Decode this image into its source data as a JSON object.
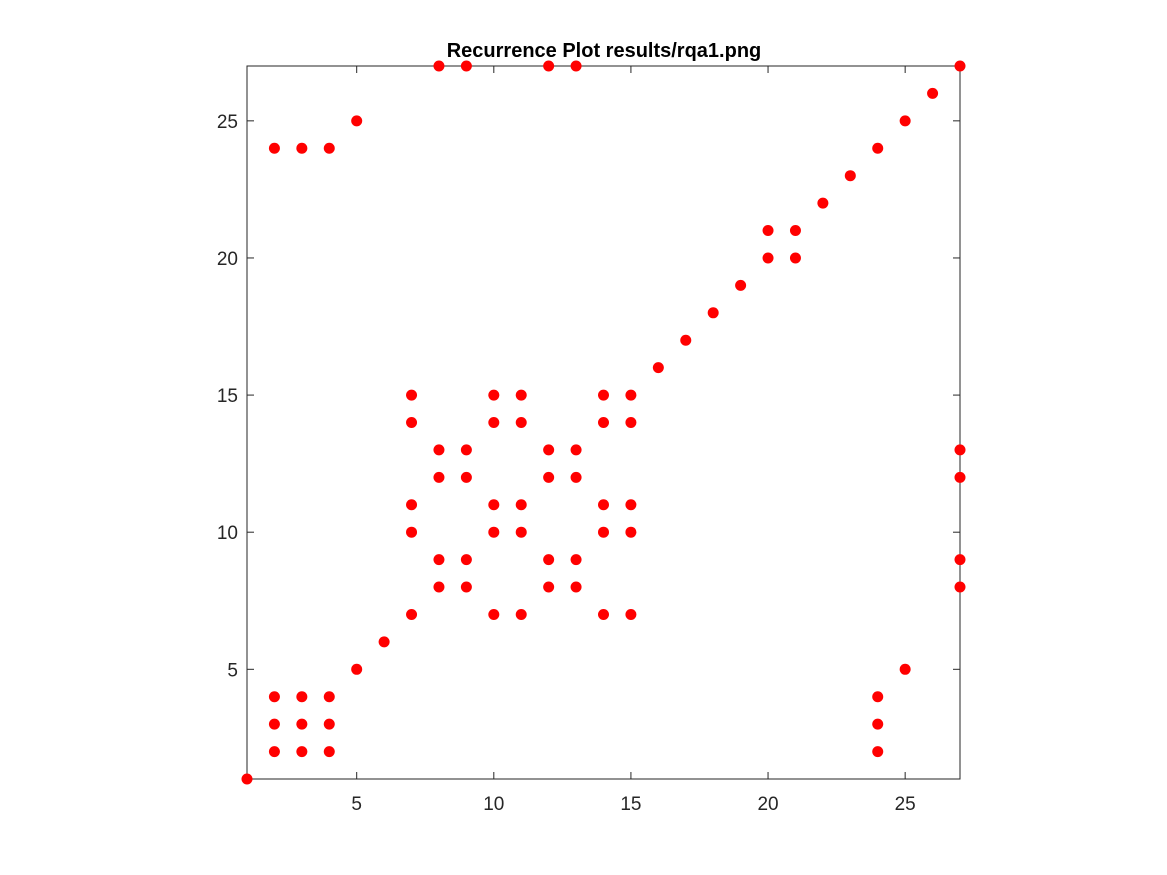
{
  "chart_data": {
    "type": "scatter",
    "title": "Recurrence Plot results/rqa1.png",
    "xlabel": "",
    "ylabel": "",
    "xlim": [
      1,
      27
    ],
    "ylim": [
      1,
      27
    ],
    "x_ticks": [
      5,
      10,
      15,
      20,
      25
    ],
    "y_ticks": [
      5,
      10,
      15,
      20,
      25
    ],
    "grid": false,
    "marker_color": "#ff0000",
    "axis_color": "#262626",
    "series": [
      {
        "points": [
          [
            1,
            1
          ],
          [
            2,
            2
          ],
          [
            2,
            3
          ],
          [
            2,
            4
          ],
          [
            3,
            2
          ],
          [
            3,
            3
          ],
          [
            3,
            4
          ],
          [
            4,
            2
          ],
          [
            4,
            3
          ],
          [
            4,
            4
          ],
          [
            2,
            24
          ],
          [
            3,
            24
          ],
          [
            4,
            24
          ],
          [
            5,
            5
          ],
          [
            5,
            25
          ],
          [
            6,
            6
          ],
          [
            7,
            7
          ],
          [
            7,
            10
          ],
          [
            7,
            11
          ],
          [
            7,
            14
          ],
          [
            7,
            15
          ],
          [
            8,
            8
          ],
          [
            8,
            9
          ],
          [
            8,
            12
          ],
          [
            8,
            13
          ],
          [
            8,
            27
          ],
          [
            9,
            8
          ],
          [
            9,
            9
          ],
          [
            9,
            12
          ],
          [
            9,
            13
          ],
          [
            9,
            27
          ],
          [
            10,
            7
          ],
          [
            10,
            10
          ],
          [
            10,
            11
          ],
          [
            10,
            14
          ],
          [
            10,
            15
          ],
          [
            11,
            7
          ],
          [
            11,
            10
          ],
          [
            11,
            11
          ],
          [
            11,
            14
          ],
          [
            11,
            15
          ],
          [
            12,
            8
          ],
          [
            12,
            9
          ],
          [
            12,
            12
          ],
          [
            12,
            13
          ],
          [
            12,
            27
          ],
          [
            13,
            8
          ],
          [
            13,
            9
          ],
          [
            13,
            12
          ],
          [
            13,
            13
          ],
          [
            13,
            27
          ],
          [
            14,
            7
          ],
          [
            14,
            10
          ],
          [
            14,
            11
          ],
          [
            14,
            14
          ],
          [
            14,
            15
          ],
          [
            15,
            7
          ],
          [
            15,
            10
          ],
          [
            15,
            11
          ],
          [
            15,
            14
          ],
          [
            15,
            15
          ],
          [
            16,
            16
          ],
          [
            17,
            17
          ],
          [
            18,
            18
          ],
          [
            19,
            19
          ],
          [
            20,
            20
          ],
          [
            20,
            21
          ],
          [
            21,
            20
          ],
          [
            21,
            21
          ],
          [
            22,
            22
          ],
          [
            23,
            23
          ],
          [
            24,
            2
          ],
          [
            24,
            3
          ],
          [
            24,
            4
          ],
          [
            24,
            24
          ],
          [
            25,
            5
          ],
          [
            25,
            25
          ],
          [
            26,
            26
          ],
          [
            27,
            8
          ],
          [
            27,
            9
          ],
          [
            27,
            12
          ],
          [
            27,
            13
          ],
          [
            27,
            27
          ]
        ]
      }
    ]
  }
}
